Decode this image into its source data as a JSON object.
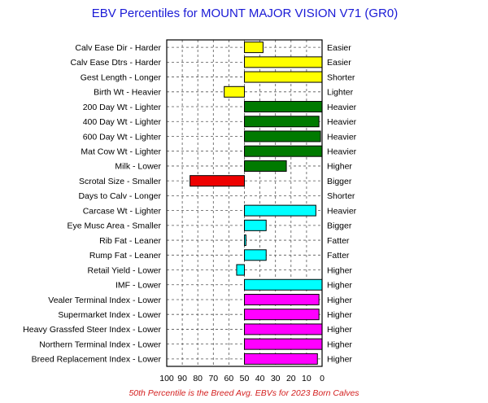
{
  "chart_data": {
    "type": "bar",
    "orientation": "horizontal",
    "title": "EBV Percentiles for MOUNT MAJOR VISION V71 (GR0)",
    "footnote": "50th Percentile is the Breed Avg. EBVs for 2023 Born Calves",
    "xlim": [
      100,
      0
    ],
    "x_ticks": [
      "100",
      "90",
      "80",
      "70",
      "60",
      "50",
      "40",
      "30",
      "20",
      "10",
      "0"
    ],
    "baseline": 50,
    "grid": true,
    "rows": [
      {
        "left": "Calv Ease Dir - Harder",
        "right": "Easier",
        "value": 38,
        "color": "#ffff00"
      },
      {
        "left": "Calv Ease Dtrs - Harder",
        "right": "Easier",
        "value": 0,
        "color": "#ffff00"
      },
      {
        "left": "Gest Length - Longer",
        "right": "Shorter",
        "value": 0,
        "color": "#ffff00"
      },
      {
        "left": "Birth Wt - Heavier",
        "right": "Lighter",
        "value": 63,
        "color": "#ffff00"
      },
      {
        "left": "200 Day Wt - Lighter",
        "right": "Heavier",
        "value": 0,
        "color": "#007a00"
      },
      {
        "left": "400 Day Wt - Lighter",
        "right": "Heavier",
        "value": 2,
        "color": "#007a00"
      },
      {
        "left": "600 Day Wt - Lighter",
        "right": "Heavier",
        "value": 1,
        "color": "#007a00"
      },
      {
        "left": "Mat Cow Wt - Lighter",
        "right": "Heavier",
        "value": 0,
        "color": "#007a00"
      },
      {
        "left": "Milk - Lower",
        "right": "Higher",
        "value": 23,
        "color": "#007a00"
      },
      {
        "left": "Scrotal Size - Smaller",
        "right": "Bigger",
        "value": 85,
        "color": "#ee0000"
      },
      {
        "left": "Days to Calv - Longer",
        "right": "Shorter",
        "value": null,
        "color": "#ffffff"
      },
      {
        "left": "Carcase Wt - Lighter",
        "right": "Heavier",
        "value": 4,
        "color": "#00ffff"
      },
      {
        "left": "Eye Musc Area - Smaller",
        "right": "Bigger",
        "value": 36,
        "color": "#00ffff"
      },
      {
        "left": "Rib Fat - Leaner",
        "right": "Fatter",
        "value": 49,
        "color": "#00ffff"
      },
      {
        "left": "Rump Fat - Leaner",
        "right": "Fatter",
        "value": 36,
        "color": "#00ffff"
      },
      {
        "left": "Retail Yield - Lower",
        "right": "Higher",
        "value": 55,
        "color": "#00ffff"
      },
      {
        "left": "IMF - Lower",
        "right": "Higher",
        "value": 0,
        "color": "#00ffff"
      },
      {
        "left": "Vealer Terminal Index - Lower",
        "right": "Higher",
        "value": 2,
        "color": "#ff00ff"
      },
      {
        "left": "Supermarket Index - Lower",
        "right": "Higher",
        "value": 2,
        "color": "#ff00ff"
      },
      {
        "left": "Heavy Grassfed Steer Index - Lower",
        "right": "Higher",
        "value": 0,
        "color": "#ff00ff"
      },
      {
        "left": "Northern Terminal Index - Lower",
        "right": "Higher",
        "value": 0,
        "color": "#ff00ff"
      },
      {
        "left": "Breed Replacement Index - Lower",
        "right": "Higher",
        "value": 3,
        "color": "#ff00ff"
      }
    ]
  }
}
